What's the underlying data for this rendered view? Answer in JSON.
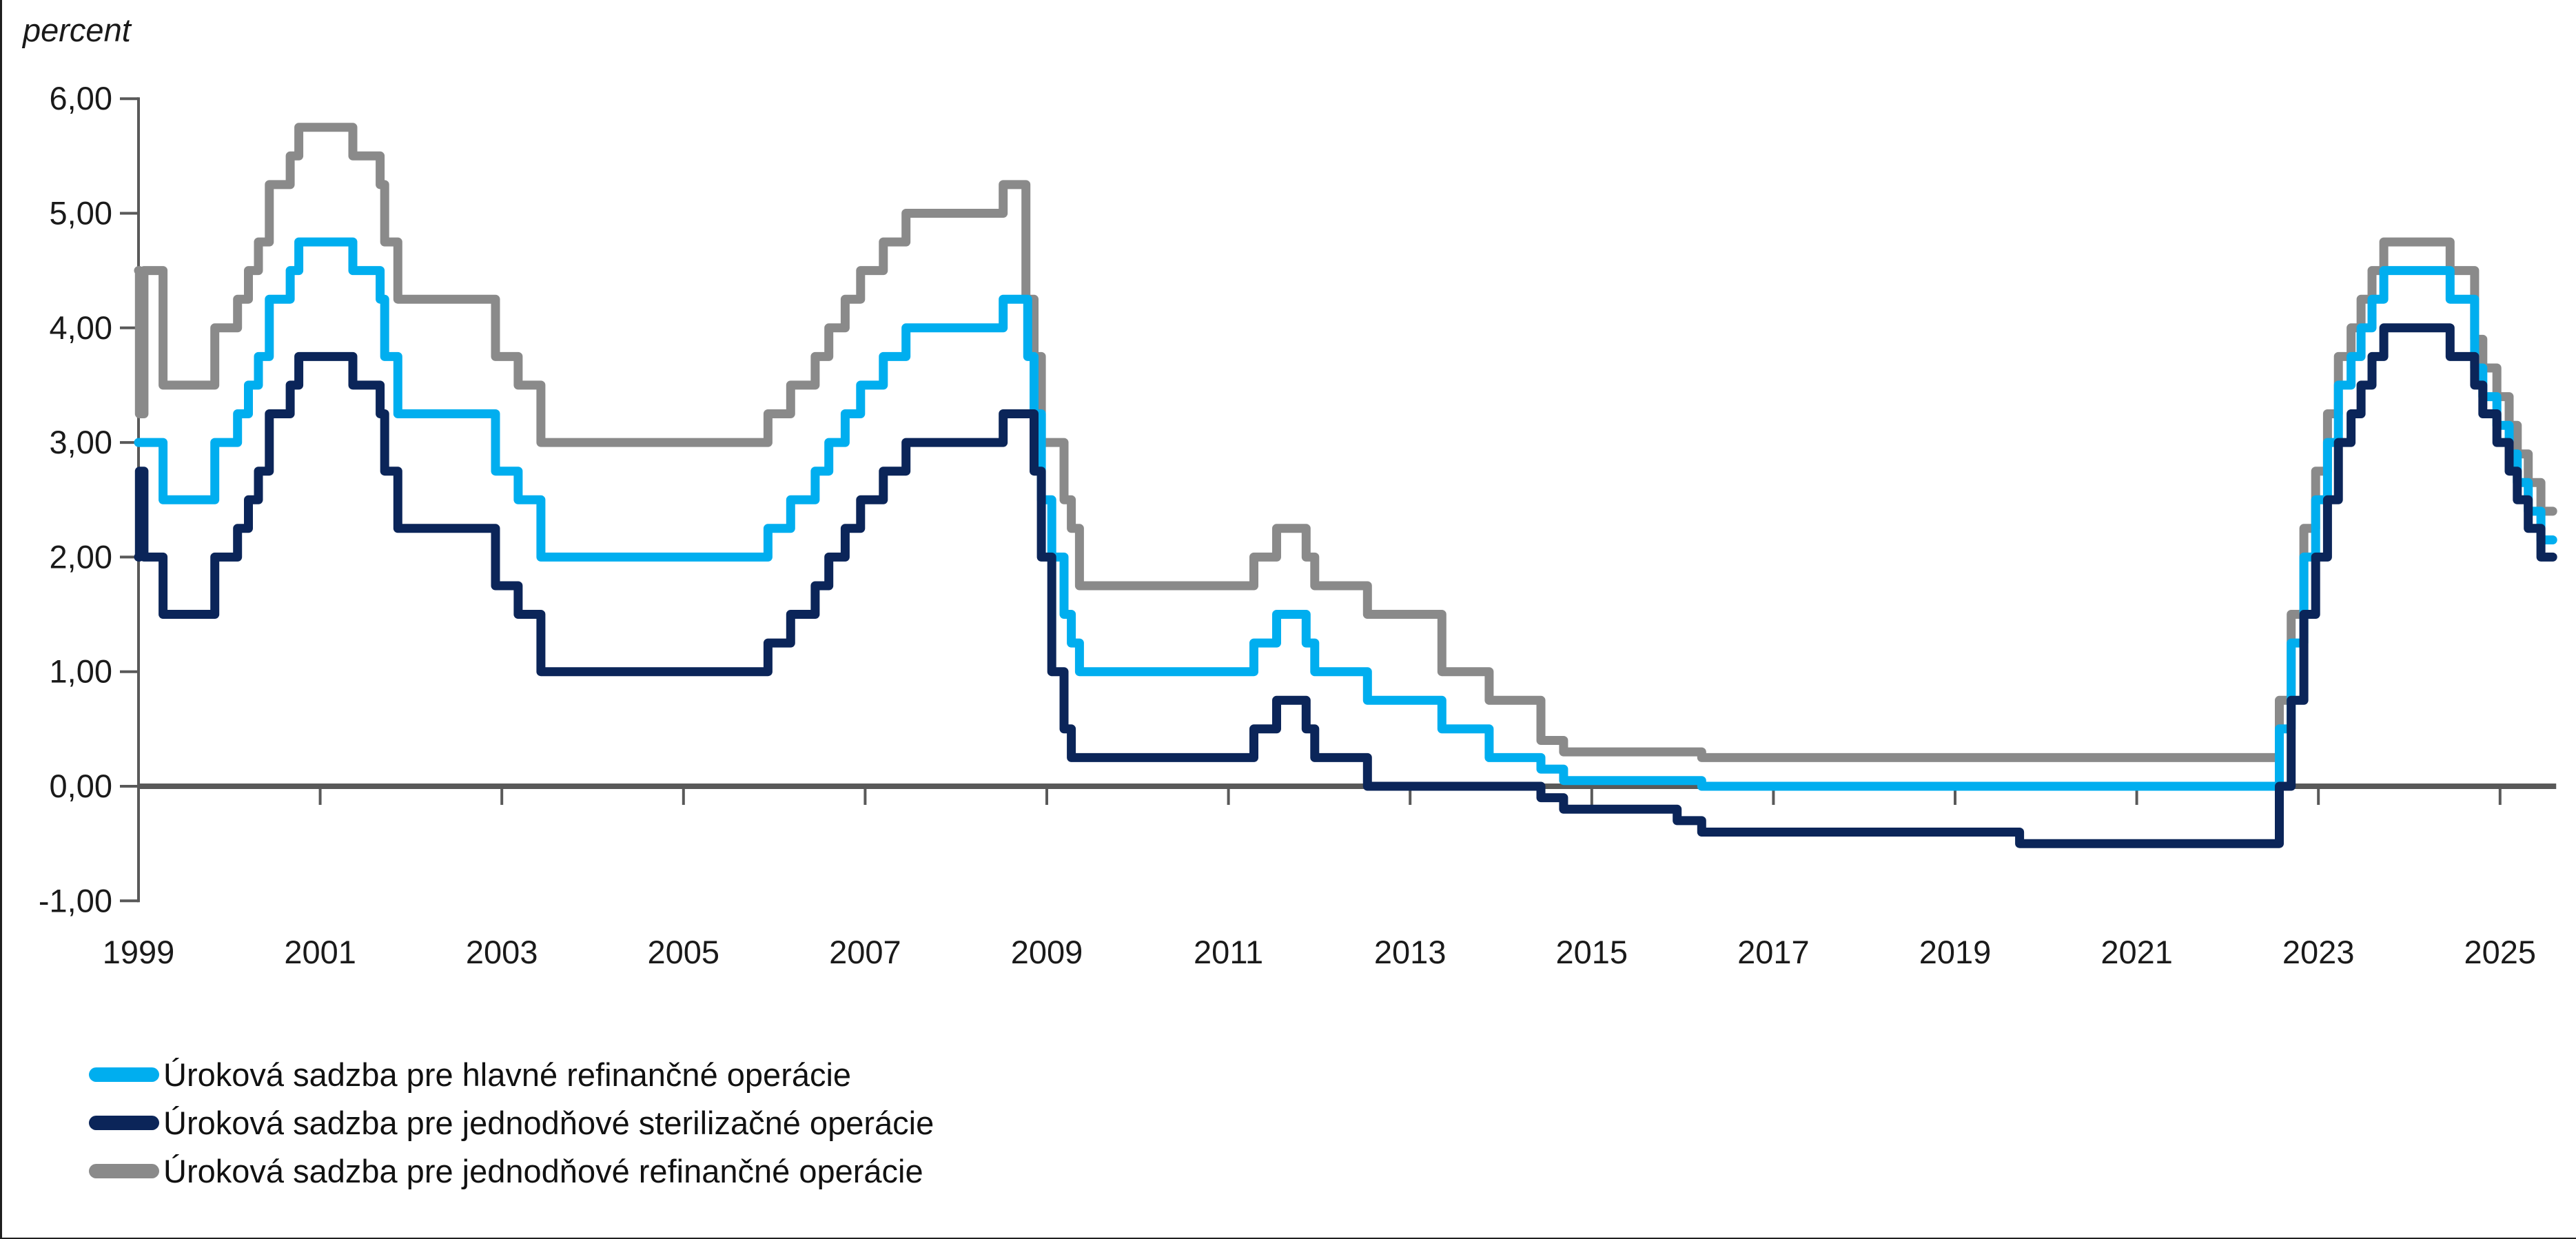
{
  "unit_label": "percent",
  "chart_data": {
    "type": "line",
    "subtype": "step-after",
    "title": "",
    "unit_label": "percent",
    "grid": "off",
    "legend_position": "bottom-left",
    "x_axis": {
      "min": 1999.0,
      "max": 2025.58,
      "tick_years": [
        1999,
        2001,
        2003,
        2005,
        2007,
        2009,
        2011,
        2013,
        2015,
        2017,
        2019,
        2021,
        2023,
        2025
      ]
    },
    "y_axis": {
      "min": -1.0,
      "max": 6.0,
      "tick_values": [
        6,
        5,
        4,
        3,
        2,
        1,
        0,
        -1
      ],
      "tick_labels": [
        "6,00",
        "5,00",
        "4,00",
        "3,00",
        "2,00",
        "1,00",
        "0,00",
        "-1,00"
      ]
    },
    "colors": {
      "axis": "#595959",
      "zero_line": "#595959",
      "text": "#1a1a1a",
      "mro": "#00AEEF",
      "deposit": "#0B2559",
      "marginal": "#8A8A8A"
    },
    "draw_order": [
      "marginal",
      "mro",
      "deposit"
    ],
    "series": [
      {
        "id": "mro",
        "name": "Úroková sadzba pre hlavné refinančné operácie",
        "color": "#00AEEF",
        "points": [
          [
            1999.0,
            3.0
          ],
          [
            1999.27,
            2.5
          ],
          [
            1999.84,
            3.0
          ],
          [
            2000.09,
            3.25
          ],
          [
            2000.21,
            3.5
          ],
          [
            2000.32,
            3.75
          ],
          [
            2000.44,
            4.25
          ],
          [
            2000.67,
            4.5
          ],
          [
            2000.765,
            4.75
          ],
          [
            2001.36,
            4.5
          ],
          [
            2001.66,
            4.25
          ],
          [
            2001.71,
            3.75
          ],
          [
            2001.855,
            3.25
          ],
          [
            2002.93,
            2.75
          ],
          [
            2003.18,
            2.5
          ],
          [
            2003.43,
            2.0
          ],
          [
            2005.93,
            2.25
          ],
          [
            2006.18,
            2.5
          ],
          [
            2006.45,
            2.75
          ],
          [
            2006.6,
            3.0
          ],
          [
            2006.78,
            3.25
          ],
          [
            2006.95,
            3.5
          ],
          [
            2007.2,
            3.75
          ],
          [
            2007.45,
            4.0
          ],
          [
            2008.52,
            4.25
          ],
          [
            2008.79,
            3.75
          ],
          [
            2008.86,
            3.25
          ],
          [
            2008.94,
            2.5
          ],
          [
            2009.055,
            2.0
          ],
          [
            2009.19,
            1.5
          ],
          [
            2009.27,
            1.25
          ],
          [
            2009.36,
            1.0
          ],
          [
            2011.28,
            1.25
          ],
          [
            2011.53,
            1.5
          ],
          [
            2011.855,
            1.25
          ],
          [
            2011.95,
            1.0
          ],
          [
            2012.53,
            0.75
          ],
          [
            2013.35,
            0.5
          ],
          [
            2013.87,
            0.25
          ],
          [
            2014.44,
            0.15
          ],
          [
            2014.69,
            0.05
          ],
          [
            2016.21,
            0.0
          ],
          [
            2022.57,
            0.5
          ],
          [
            2022.7,
            1.25
          ],
          [
            2022.84,
            2.0
          ],
          [
            2022.97,
            2.5
          ],
          [
            2023.1,
            3.0
          ],
          [
            2023.22,
            3.5
          ],
          [
            2023.36,
            3.75
          ],
          [
            2023.47,
            4.0
          ],
          [
            2023.59,
            4.25
          ],
          [
            2023.72,
            4.5
          ],
          [
            2024.45,
            4.25
          ],
          [
            2024.72,
            3.65
          ],
          [
            2024.81,
            3.4
          ],
          [
            2024.965,
            3.15
          ],
          [
            2025.1,
            2.9
          ],
          [
            2025.19,
            2.65
          ],
          [
            2025.31,
            2.4
          ],
          [
            2025.45,
            2.15
          ]
        ]
      },
      {
        "id": "deposit",
        "name": "Úroková sadzba pre jednodňové sterilizačné operácie",
        "color": "#0B2559",
        "points": [
          [
            1999.0,
            2.0
          ],
          [
            1999.01,
            2.75
          ],
          [
            1999.06,
            2.0
          ],
          [
            1999.27,
            1.5
          ],
          [
            1999.84,
            2.0
          ],
          [
            2000.09,
            2.25
          ],
          [
            2000.21,
            2.5
          ],
          [
            2000.32,
            2.75
          ],
          [
            2000.44,
            3.25
          ],
          [
            2000.67,
            3.5
          ],
          [
            2000.765,
            3.75
          ],
          [
            2001.36,
            3.5
          ],
          [
            2001.66,
            3.25
          ],
          [
            2001.71,
            2.75
          ],
          [
            2001.855,
            2.25
          ],
          [
            2002.93,
            1.75
          ],
          [
            2003.18,
            1.5
          ],
          [
            2003.43,
            1.0
          ],
          [
            2005.93,
            1.25
          ],
          [
            2006.18,
            1.5
          ],
          [
            2006.45,
            1.75
          ],
          [
            2006.6,
            2.0
          ],
          [
            2006.78,
            2.25
          ],
          [
            2006.95,
            2.5
          ],
          [
            2007.2,
            2.75
          ],
          [
            2007.45,
            3.0
          ],
          [
            2008.52,
            3.25
          ],
          [
            2008.86,
            2.75
          ],
          [
            2008.94,
            2.0
          ],
          [
            2009.055,
            1.0
          ],
          [
            2009.19,
            0.5
          ],
          [
            2009.27,
            0.25
          ],
          [
            2011.28,
            0.5
          ],
          [
            2011.53,
            0.75
          ],
          [
            2011.855,
            0.5
          ],
          [
            2011.95,
            0.25
          ],
          [
            2012.53,
            0.0
          ],
          [
            2014.44,
            -0.1
          ],
          [
            2014.69,
            -0.2
          ],
          [
            2015.94,
            -0.3
          ],
          [
            2016.21,
            -0.4
          ],
          [
            2019.71,
            -0.5
          ],
          [
            2022.57,
            0.0
          ],
          [
            2022.7,
            0.75
          ],
          [
            2022.84,
            1.5
          ],
          [
            2022.97,
            2.0
          ],
          [
            2023.1,
            2.5
          ],
          [
            2023.22,
            3.0
          ],
          [
            2023.36,
            3.25
          ],
          [
            2023.47,
            3.5
          ],
          [
            2023.59,
            3.75
          ],
          [
            2023.72,
            4.0
          ],
          [
            2024.45,
            3.75
          ],
          [
            2024.72,
            3.5
          ],
          [
            2024.81,
            3.25
          ],
          [
            2024.965,
            3.0
          ],
          [
            2025.1,
            2.75
          ],
          [
            2025.19,
            2.5
          ],
          [
            2025.31,
            2.25
          ],
          [
            2025.45,
            2.0
          ]
        ]
      },
      {
        "id": "marginal",
        "name": "Úroková sadzba pre jednodňové refinančné operácie",
        "color": "#8A8A8A",
        "points": [
          [
            1999.0,
            4.5
          ],
          [
            1999.01,
            3.25
          ],
          [
            1999.06,
            4.5
          ],
          [
            1999.27,
            3.5
          ],
          [
            1999.84,
            4.0
          ],
          [
            2000.09,
            4.25
          ],
          [
            2000.21,
            4.5
          ],
          [
            2000.32,
            4.75
          ],
          [
            2000.44,
            5.25
          ],
          [
            2000.67,
            5.5
          ],
          [
            2000.765,
            5.75
          ],
          [
            2001.36,
            5.5
          ],
          [
            2001.66,
            5.25
          ],
          [
            2001.71,
            4.75
          ],
          [
            2001.855,
            4.25
          ],
          [
            2002.93,
            3.75
          ],
          [
            2003.18,
            3.5
          ],
          [
            2003.43,
            3.0
          ],
          [
            2005.93,
            3.25
          ],
          [
            2006.18,
            3.5
          ],
          [
            2006.45,
            3.75
          ],
          [
            2006.6,
            4.0
          ],
          [
            2006.78,
            4.25
          ],
          [
            2006.95,
            4.5
          ],
          [
            2007.2,
            4.75
          ],
          [
            2007.45,
            5.0
          ],
          [
            2008.52,
            5.25
          ],
          [
            2008.77,
            4.25
          ],
          [
            2008.86,
            3.75
          ],
          [
            2008.94,
            3.0
          ],
          [
            2009.19,
            2.5
          ],
          [
            2009.27,
            2.25
          ],
          [
            2009.36,
            1.75
          ],
          [
            2011.28,
            2.0
          ],
          [
            2011.53,
            2.25
          ],
          [
            2011.855,
            2.0
          ],
          [
            2011.95,
            1.75
          ],
          [
            2012.53,
            1.5
          ],
          [
            2013.35,
            1.0
          ],
          [
            2013.87,
            0.75
          ],
          [
            2014.44,
            0.4
          ],
          [
            2014.69,
            0.3
          ],
          [
            2016.21,
            0.25
          ],
          [
            2022.57,
            0.75
          ],
          [
            2022.7,
            1.5
          ],
          [
            2022.84,
            2.25
          ],
          [
            2022.97,
            2.75
          ],
          [
            2023.1,
            3.25
          ],
          [
            2023.22,
            3.75
          ],
          [
            2023.36,
            4.0
          ],
          [
            2023.47,
            4.25
          ],
          [
            2023.59,
            4.5
          ],
          [
            2023.72,
            4.75
          ],
          [
            2024.45,
            4.5
          ],
          [
            2024.72,
            3.9
          ],
          [
            2024.81,
            3.65
          ],
          [
            2024.965,
            3.4
          ],
          [
            2025.1,
            3.15
          ],
          [
            2025.19,
            2.9
          ],
          [
            2025.31,
            2.65
          ],
          [
            2025.45,
            2.4
          ]
        ]
      }
    ]
  }
}
